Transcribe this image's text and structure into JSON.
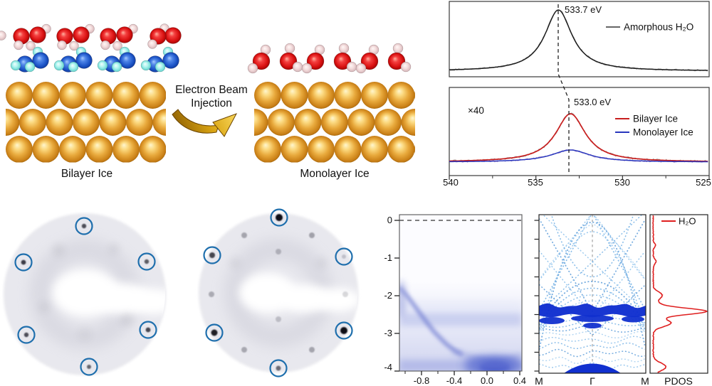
{
  "figure": {
    "models": {
      "bilayer_label": "Bilayer Ice",
      "monolayer_label": "Monolayer Ice",
      "arrow_line1": "Electron Beam",
      "arrow_line2": "Injection"
    },
    "xps": {
      "peak_top": "533.7 eV",
      "peak_bottom": "533.0 eV",
      "magnification": "×40",
      "legend_amorphous": "Amorphous H₂O",
      "legend_bilayer": "Bilayer Ice",
      "legend_monolayer": "Monolayer Ice",
      "x_ticks": [
        "540",
        "535",
        "530",
        "525"
      ]
    },
    "arpes": {
      "y_ticks": [
        "0",
        "-1",
        "-2",
        "-3",
        "-4"
      ],
      "x_ticks": [
        "-0.8",
        "-0.4",
        "0.0",
        "0.4"
      ]
    },
    "bands": {
      "k_left": "M",
      "k_gamma": "Γ",
      "k_right": "M",
      "pdos_label": "PDOS",
      "legend_h2o": "H₂O"
    }
  },
  "colors": {
    "gold": "#E8A93C",
    "oxygen_red": "#D81010",
    "hydrogen_pink": "#EFD5D6",
    "oxygen_blue": "#1D55C8",
    "hydrogen_cyan": "#9FF0EA",
    "leed_circle_blue": "#1F6FAD",
    "xps_amorphous_black": "#1B1B1B",
    "xps_bilayer_red": "#C81E1E",
    "xps_monolayer_blue": "#2836BD",
    "band_light_blue": "#79B4E6",
    "band_dark_blue": "#1130CF",
    "pdos_red": "#DF1F1F"
  },
  "chart_data": [
    {
      "id": "xps_o1s_spectra",
      "type": "line",
      "x_axis": {
        "ticks": [
          540,
          535,
          530,
          525
        ],
        "range": [
          540,
          525
        ],
        "reversed": true
      },
      "panels": [
        {
          "annotation": "533.7 eV",
          "series": [
            {
              "name": "Amorphous H₂O",
              "color": "#1B1B1B",
              "peak_center_eV": 533.7,
              "peak_fwhm_eV": 1.9,
              "relative_peak_height": 1.0
            }
          ]
        },
        {
          "scale_note": "×40",
          "annotation": "533.0 eV",
          "series": [
            {
              "name": "Bilayer Ice",
              "color": "#C81E1E",
              "peak_center_eV": 533.0,
              "peak_fwhm_eV": 2.1,
              "relative_peak_height": 1.0
            },
            {
              "name": "Monolayer Ice",
              "color": "#2836BD",
              "peak_center_eV": 533.0,
              "peak_fwhm_eV": 2.7,
              "relative_peak_height": 0.26
            }
          ]
        }
      ]
    },
    {
      "id": "arpes_map",
      "type": "heatmap",
      "x_ticks": [
        -0.8,
        -0.4,
        0.0,
        0.4
      ],
      "y_ticks": [
        0,
        -1,
        -2,
        -3,
        -4
      ],
      "x_range": [
        -1.07,
        0.43
      ],
      "y_range": [
        -4,
        0.15
      ],
      "fermi_dashed_at": 0,
      "features": [
        {
          "name": "dispersive band",
          "points_x_energy": [
            [
              -1.0,
              -1.9
            ],
            [
              -0.8,
              -2.5
            ],
            [
              -0.6,
              -3.1
            ],
            [
              -0.4,
              -3.5
            ],
            [
              -0.2,
              -3.65
            ],
            [
              0.0,
              -3.72
            ],
            [
              0.2,
              -3.7
            ],
            [
              0.4,
              -3.6
            ]
          ]
        },
        {
          "name": "flat emission band",
          "energy": -2.6
        },
        {
          "name": "intensity pocket",
          "x": 0.05,
          "energy": -3.85
        }
      ]
    },
    {
      "id": "band_structure",
      "type": "line",
      "k_path": [
        "M",
        "Γ",
        "M"
      ],
      "energy_range": [
        -4.2,
        0.2
      ],
      "features": [
        {
          "name": "H₂O flat band",
          "energy": -2.4,
          "color": "#1130CF"
        },
        {
          "name": "substrate bands",
          "style": "light blue dotted",
          "energy_range": [
            -4.2,
            0.2
          ]
        }
      ]
    },
    {
      "id": "pdos",
      "type": "line",
      "orientation": "vertical",
      "xlabel": "PDOS",
      "series": [
        {
          "name": "H₂O",
          "color": "#DF1F1F",
          "peaks_energy_rel_height": [
            [
              -2.4,
              1.0
            ],
            [
              -2.7,
              0.33
            ],
            [
              -2.0,
              0.17
            ],
            [
              -1.1,
              0.06
            ],
            [
              -3.9,
              0.28
            ]
          ]
        }
      ]
    }
  ]
}
